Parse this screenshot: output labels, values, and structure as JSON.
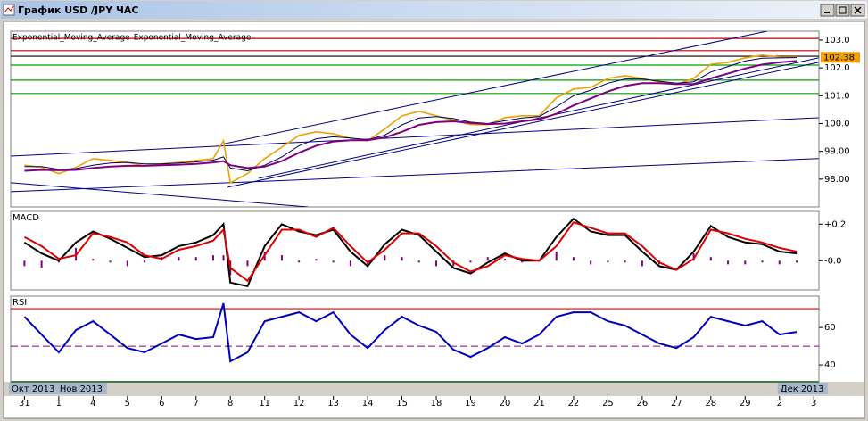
{
  "window": {
    "title": "График USD /JPY ЧАС"
  },
  "x_axis": {
    "x": [
      0,
      0.5,
      1,
      1.5,
      2,
      2.5,
      3,
      3.5,
      4,
      4.5,
      5,
      5.5,
      5.8,
      6,
      6.5,
      7,
      7.5,
      8,
      8.5,
      9,
      9.5,
      10,
      10.5,
      11,
      11.5,
      12,
      12.5,
      13,
      13.5,
      14,
      14.5,
      15,
      15.5,
      16,
      16.5,
      17,
      17.5,
      18,
      18.5,
      19,
      19.5,
      20,
      20.5,
      21,
      21.5,
      22,
      22.5
    ],
    "xlim": [
      -0.4,
      23.15
    ],
    "xticks": [
      {
        "value": 0,
        "label": "31"
      },
      {
        "value": 1,
        "label": "1"
      },
      {
        "value": 2,
        "label": "4"
      },
      {
        "value": 3,
        "label": "5"
      },
      {
        "value": 4,
        "label": "6"
      },
      {
        "value": 5,
        "label": "7"
      },
      {
        "value": 6,
        "label": "8"
      },
      {
        "value": 7,
        "label": "11"
      },
      {
        "value": 8,
        "label": "12"
      },
      {
        "value": 9,
        "label": "13"
      },
      {
        "value": 10,
        "label": "14"
      },
      {
        "value": 11,
        "label": "15"
      },
      {
        "value": 12,
        "label": "18"
      },
      {
        "value": 13,
        "label": "19"
      },
      {
        "value": 14,
        "label": "20"
      },
      {
        "value": 15,
        "label": "21"
      },
      {
        "value": 16,
        "label": "22"
      },
      {
        "value": 17,
        "label": "25"
      },
      {
        "value": 18,
        "label": "26"
      },
      {
        "value": 19,
        "label": "27"
      },
      {
        "value": 20,
        "label": "28"
      },
      {
        "value": 21,
        "label": "29"
      },
      {
        "value": 22,
        "label": "2"
      },
      {
        "value": 23,
        "label": "3"
      }
    ],
    "month_ticks": [
      {
        "value": -0.4,
        "label": "Окт 2013"
      },
      {
        "value": 1,
        "label": "Нов 2013"
      },
      {
        "value": 22,
        "label": "Дек 2013"
      }
    ]
  },
  "chart_data": [
    {
      "type": "line",
      "legend": true,
      "ylim": [
        97.0,
        103.32
      ],
      "yticks": [
        {
          "value": 98,
          "label": "98.00"
        },
        {
          "value": 99,
          "label": "99.00"
        },
        {
          "value": 100,
          "label": "100.0"
        },
        {
          "value": 101,
          "label": "101.0"
        },
        {
          "value": 102,
          "label": "102.0"
        },
        {
          "value": 103,
          "label": "103.0"
        }
      ],
      "last_value": 102.38,
      "levels": [
        {
          "value": 103.06,
          "color": "#c00000"
        },
        {
          "value": 102.62,
          "color": "#c00000"
        },
        {
          "value": 102.42,
          "color": "#000000"
        },
        {
          "value": 102.1,
          "color": "#00a000"
        },
        {
          "value": 101.56,
          "color": "#00a000"
        },
        {
          "value": 101.08,
          "color": "#00a000"
        }
      ],
      "trend_lines": [
        {
          "x": [
            5.74,
            21.64
          ],
          "y": [
            99.25,
            103.32
          ],
          "color": "#000080"
        },
        {
          "x": [
            5.92,
            23.14
          ],
          "y": [
            97.71,
            102.2
          ],
          "color": "#000080"
        },
        {
          "x": [
            6.83,
            23.14
          ],
          "y": [
            98.03,
            102.36
          ],
          "color": "#000080"
        },
        {
          "x": [
            -0.39,
            23.14
          ],
          "y": [
            98.83,
            100.21
          ],
          "color": "#000080"
        },
        {
          "x": [
            -0.39,
            23.14
          ],
          "y": [
            97.55,
            98.74
          ],
          "color": "#000080"
        },
        {
          "x": [
            -0.39,
            8.26
          ],
          "y": [
            97.87,
            97.0
          ],
          "color": "#000080"
        }
      ],
      "series": [
        {
          "color": "#f0a000",
          "values": [
            98.5,
            98.42,
            98.2,
            98.42,
            98.74,
            98.67,
            98.6,
            98.48,
            98.55,
            98.6,
            98.67,
            98.74,
            99.38,
            97.87,
            98.2,
            98.74,
            99.15,
            99.57,
            99.7,
            99.63,
            99.47,
            99.38,
            99.8,
            100.28,
            100.44,
            100.28,
            100.12,
            99.96,
            99.96,
            100.21,
            100.28,
            100.28,
            100.92,
            101.24,
            101.3,
            101.62,
            101.72,
            101.62,
            101.49,
            101.4,
            101.62,
            102.13,
            102.2,
            102.36,
            102.46,
            102.39,
            102.39
          ]
        },
        {
          "name": "Exponential_Moving_Average",
          "color": "#000060",
          "values": [
            98.45,
            98.45,
            98.35,
            98.38,
            98.5,
            98.58,
            98.6,
            98.55,
            98.55,
            98.58,
            98.62,
            98.68,
            98.8,
            98.4,
            98.3,
            98.5,
            98.8,
            99.2,
            99.45,
            99.52,
            99.48,
            99.42,
            99.58,
            99.95,
            100.2,
            100.25,
            100.18,
            100.05,
            100.0,
            100.1,
            100.2,
            100.25,
            100.6,
            101.0,
            101.2,
            101.45,
            101.6,
            101.6,
            101.52,
            101.45,
            101.5,
            101.85,
            102.05,
            102.25,
            102.35,
            102.36,
            102.37
          ]
        },
        {
          "name": "Exponential_Moving_Average",
          "color": "#800080",
          "values": [
            98.3,
            98.33,
            98.32,
            98.33,
            98.4,
            98.45,
            98.48,
            98.48,
            98.5,
            98.52,
            98.55,
            98.6,
            98.65,
            98.5,
            98.4,
            98.45,
            98.65,
            98.95,
            99.2,
            99.35,
            99.4,
            99.4,
            99.5,
            99.7,
            99.95,
            100.05,
            100.08,
            100.02,
            99.98,
            100.0,
            100.08,
            100.15,
            100.35,
            100.65,
            100.9,
            101.15,
            101.35,
            101.45,
            101.45,
            101.42,
            101.42,
            101.62,
            101.8,
            101.98,
            102.12,
            102.2,
            102.25
          ]
        }
      ]
    },
    {
      "type": "line",
      "title": "MACD",
      "ylim": [
        -0.16,
        0.27
      ],
      "yticks": [
        {
          "value": 0,
          "label": "-0.0"
        },
        {
          "value": 0.2,
          "label": "+0.2"
        }
      ],
      "series": [
        {
          "type": "bar",
          "color": "#800080",
          "values": [
            -0.03,
            -0.04,
            -0.01,
            0.07,
            0.01,
            -0.01,
            -0.03,
            -0.01,
            0.02,
            0.02,
            0.02,
            0.03,
            0.03,
            -0.08,
            -0.03,
            0.05,
            0.03,
            -0.01,
            0.01,
            -0.01,
            -0.03,
            -0.02,
            0.03,
            0.02,
            -0.01,
            -0.03,
            -0.03,
            -0.01,
            0.02,
            0.01,
            -0.01,
            0,
            0.05,
            0.02,
            -0.02,
            -0.01,
            -0.01,
            -0.03,
            -0.02,
            0,
            0.04,
            0.02,
            -0.02,
            -0.02,
            -0.01,
            -0.02,
            -0.01
          ]
        },
        {
          "color": "#000000",
          "values": [
            0.1,
            0.04,
            0.0,
            0.1,
            0.16,
            0.12,
            0.07,
            0.02,
            0.03,
            0.08,
            0.1,
            0.14,
            0.2,
            -0.12,
            -0.14,
            0.08,
            0.2,
            0.16,
            0.14,
            0.17,
            0.05,
            -0.03,
            0.09,
            0.17,
            0.14,
            0.05,
            -0.04,
            -0.07,
            -0.01,
            0.04,
            0.0,
            0.0,
            0.13,
            0.23,
            0.16,
            0.14,
            0.14,
            0.05,
            -0.03,
            -0.05,
            0.05,
            0.19,
            0.13,
            0.1,
            0.09,
            0.05,
            0.04
          ]
        },
        {
          "color": "#e00000",
          "values": [
            0.13,
            0.08,
            0.01,
            0.03,
            0.15,
            0.13,
            0.1,
            0.03,
            0.01,
            0.06,
            0.08,
            0.11,
            0.17,
            -0.04,
            -0.11,
            0.03,
            0.17,
            0.17,
            0.13,
            0.18,
            0.08,
            -0.01,
            0.06,
            0.15,
            0.15,
            0.08,
            -0.01,
            -0.06,
            -0.03,
            0.03,
            0.01,
            0,
            0.08,
            0.21,
            0.18,
            0.15,
            0.15,
            0.08,
            -0.01,
            -0.05,
            0.01,
            0.17,
            0.15,
            0.12,
            0.1,
            0.07,
            0.05
          ]
        }
      ]
    },
    {
      "type": "line",
      "title": "RSI",
      "ylim": [
        31,
        76.7
      ],
      "yticks": [
        40,
        60
      ],
      "levels": [
        {
          "value": 70,
          "color": "#e00000"
        },
        {
          "value": 50,
          "color": "#800080",
          "style": "dashed"
        }
      ],
      "series": [
        {
          "color": "#0000c0",
          "values": [
            65.7,
            56.2,
            46.7,
            58.6,
            63.3,
            56.2,
            49,
            46.7,
            51.4,
            56.2,
            53.8,
            54.8,
            72.9,
            41.9,
            46.7,
            63.3,
            65.7,
            68.1,
            63.3,
            68.1,
            56.2,
            49,
            58.6,
            65.7,
            61,
            57.6,
            48.1,
            44.3,
            49,
            54.8,
            51.4,
            56.2,
            65.7,
            68.1,
            68.1,
            63.3,
            61,
            56.2,
            51.4,
            49,
            54.8,
            65.7,
            63.3,
            61,
            63.3,
            56.2,
            57.6
          ]
        }
      ]
    }
  ]
}
